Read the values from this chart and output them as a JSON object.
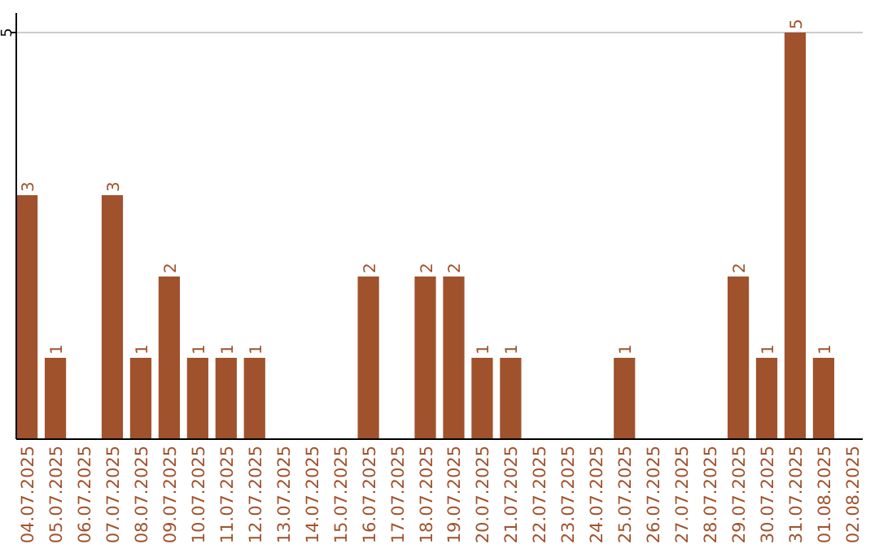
{
  "chart_data": {
    "type": "bar",
    "categories": [
      "04.07.2025",
      "05.07.2025",
      "06.07.2025",
      "07.07.2025",
      "08.07.2025",
      "09.07.2025",
      "10.07.2025",
      "11.07.2025",
      "12.07.2025",
      "13.07.2025",
      "14.07.2025",
      "15.07.2025",
      "16.07.2025",
      "17.07.2025",
      "18.07.2025",
      "19.07.2025",
      "20.07.2025",
      "21.07.2025",
      "22.07.2025",
      "23.07.2025",
      "24.07.2025",
      "25.07.2025",
      "26.07.2025",
      "27.07.2025",
      "28.07.2025",
      "29.07.2025",
      "30.07.2025",
      "31.07.2025",
      "01.08.2025",
      "02.08.2025"
    ],
    "values": [
      3,
      1,
      0,
      3,
      1,
      2,
      1,
      1,
      1,
      0,
      0,
      0,
      2,
      0,
      2,
      2,
      1,
      1,
      0,
      0,
      0,
      1,
      0,
      0,
      0,
      2,
      1,
      5,
      1,
      0
    ],
    "value_labels": [
      "3",
      "1",
      null,
      "3",
      "1",
      "2",
      "1",
      "1",
      "1",
      null,
      null,
      null,
      "2",
      null,
      "2",
      "2",
      "1",
      "1",
      null,
      null,
      null,
      "1",
      null,
      null,
      null,
      "2",
      "1",
      "5",
      "1",
      null
    ],
    "color": "#a0522d",
    "ylim": [
      0,
      5.24
    ],
    "yticks": [
      5
    ],
    "grid": "y"
  }
}
